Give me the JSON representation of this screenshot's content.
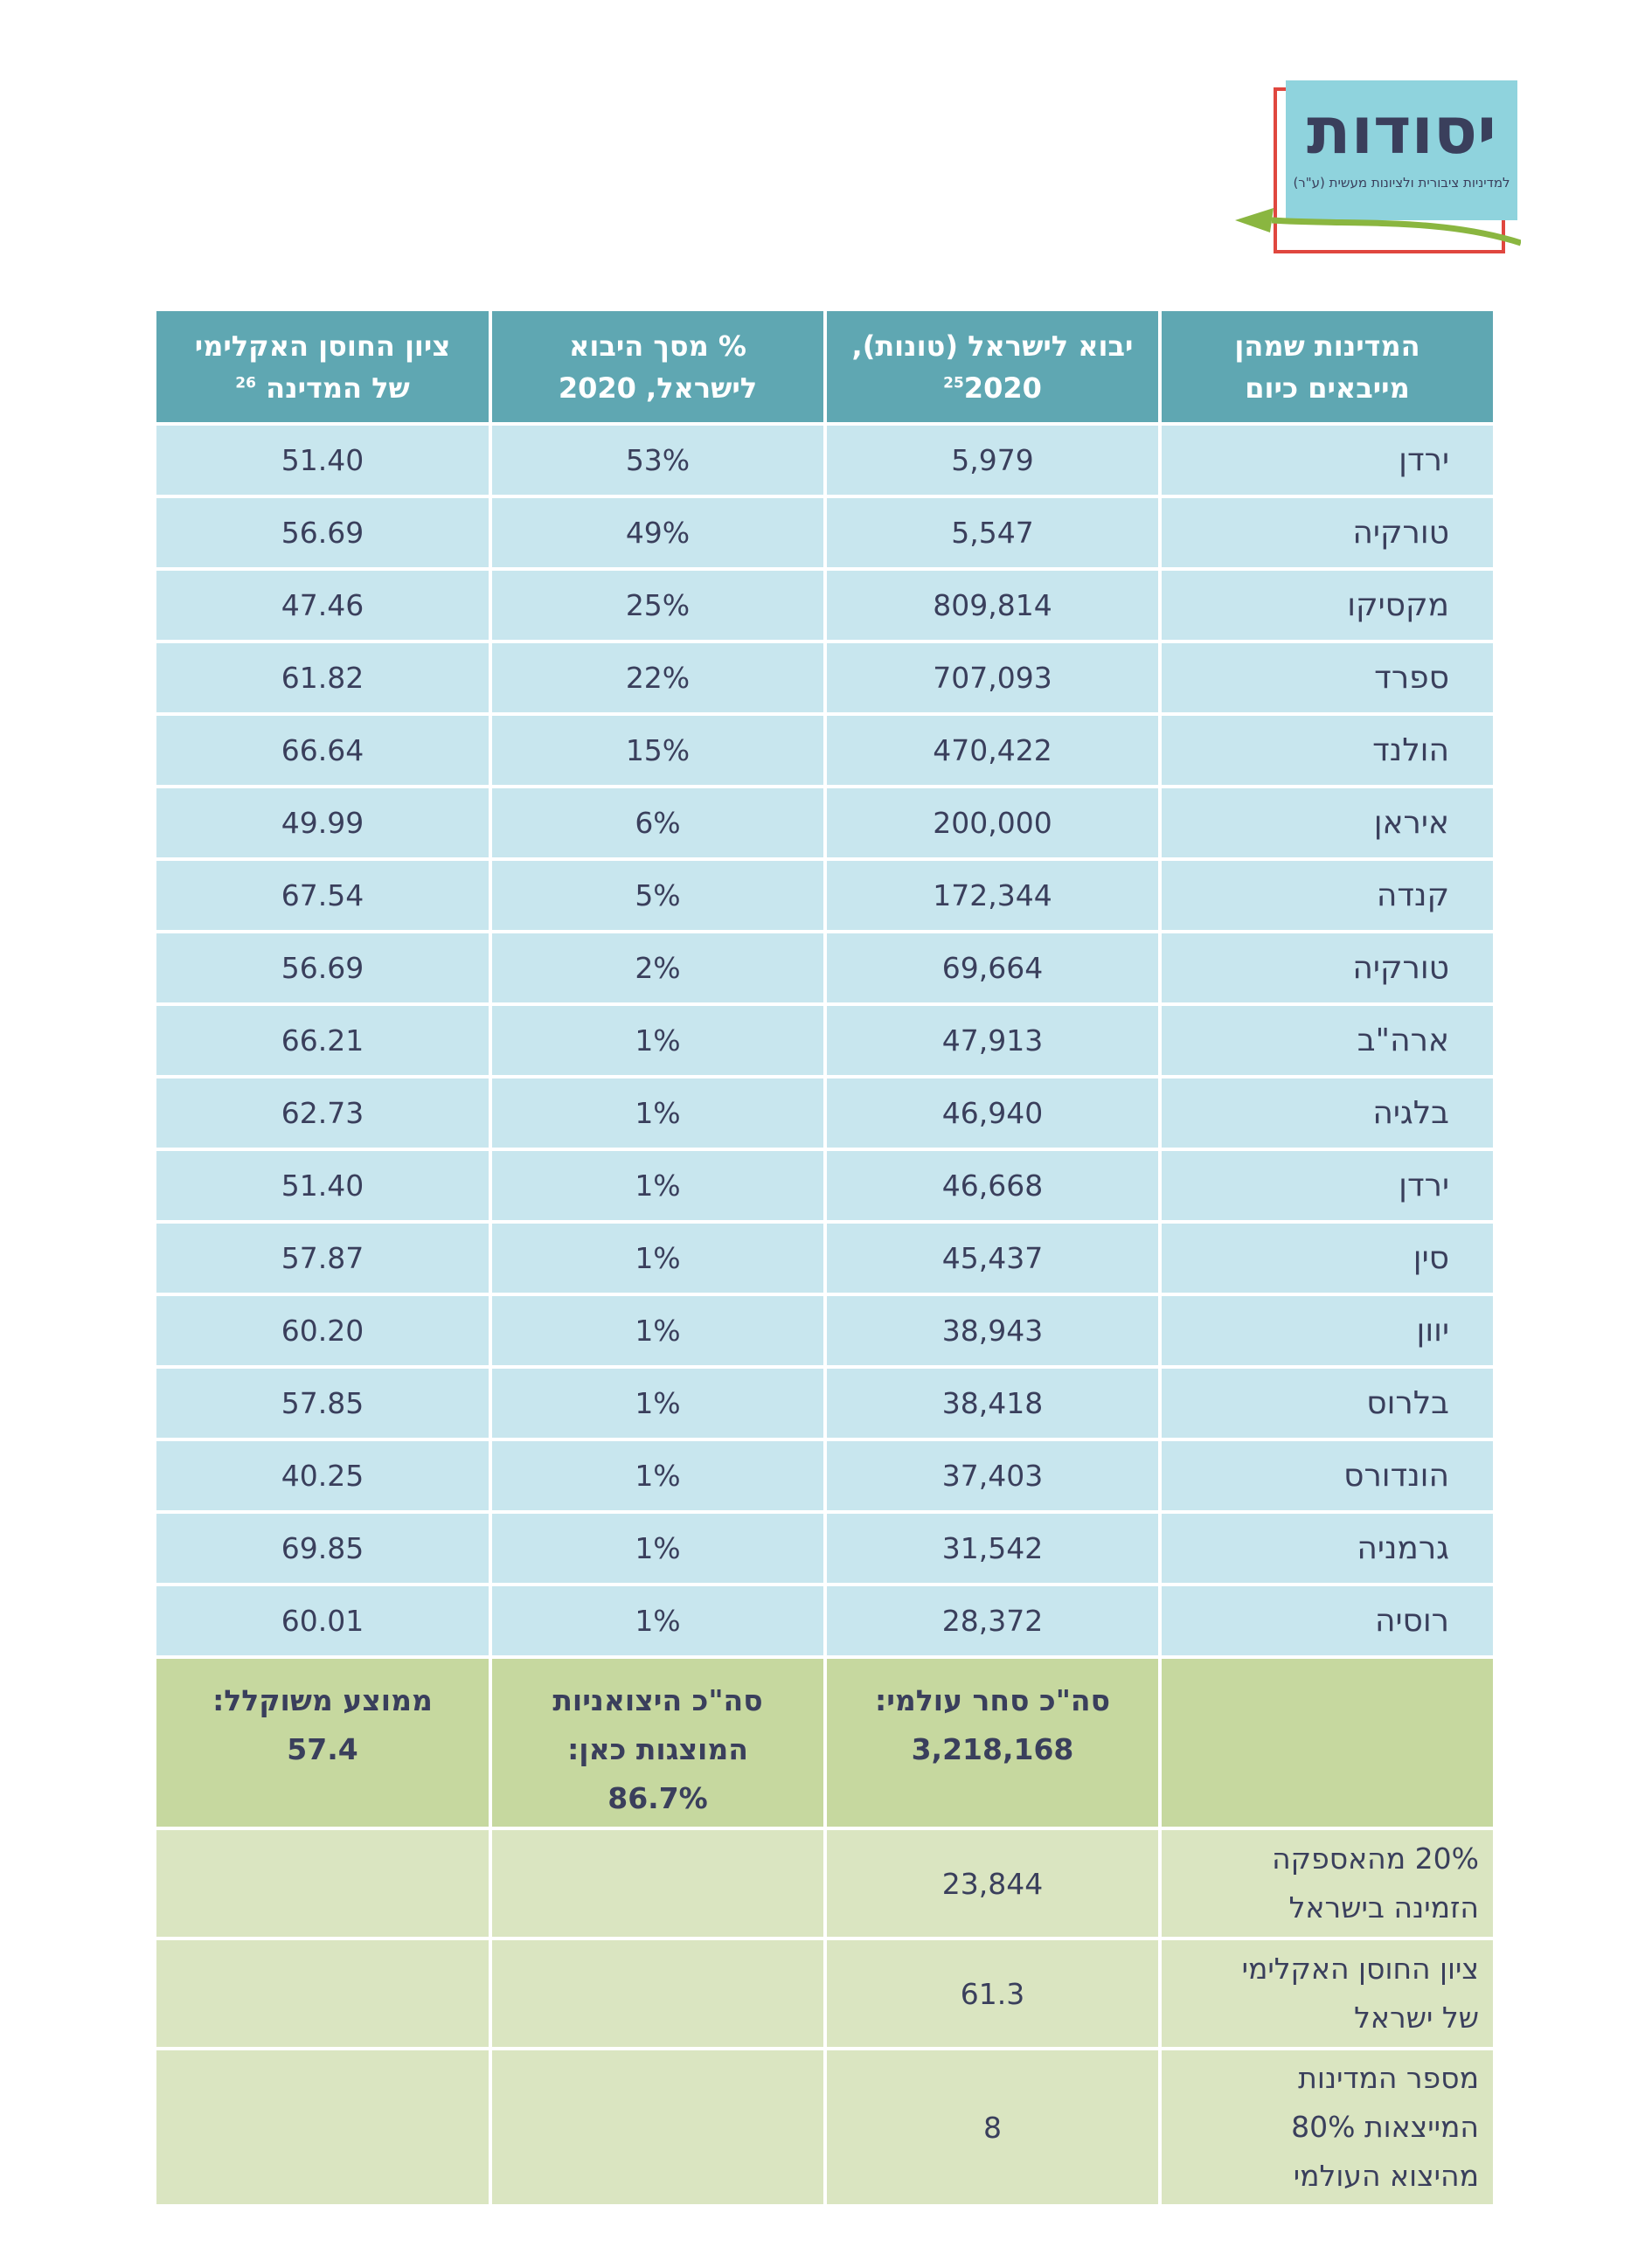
{
  "logo": {
    "title": "יסודות",
    "subtitle": "למדיניות ציבורית ולציונות מעשית (ע\"ר)",
    "colors": {
      "teal": "#8fd3dd",
      "red": "#e0473f",
      "green": "#8ab640",
      "navy": "#3a3f5c"
    }
  },
  "colors": {
    "header_bg": "#5fa7b2",
    "row_bg": "#c8e6ee",
    "total_bg": "#c6d89f",
    "extra_bg": "#dae5c1"
  },
  "table": {
    "headers": {
      "country_line1": "המדינות שמהן",
      "country_line2": "מייבאים כיום",
      "import_line1": "יבוא לישראל (טונות),",
      "import_line2": "2020",
      "import_sup": "25",
      "share_line1": "% מסך היבוא",
      "share_line2": "לישראל, 2020",
      "resilience_line1": "ציון החוסן האקלימי",
      "resilience_line2": "של המדינה",
      "resilience_sup": "26"
    },
    "rows": [
      {
        "country": "ירדן",
        "import": "5,979",
        "share": "53%",
        "index": "51.40"
      },
      {
        "country": "טורקיה",
        "import": "5,547",
        "share": "49%",
        "index": "56.69"
      },
      {
        "country": "מקסיקו",
        "import": "809,814",
        "share": "25%",
        "index": "47.46"
      },
      {
        "country": "ספרד",
        "import": "707,093",
        "share": "22%",
        "index": "61.82"
      },
      {
        "country": "הולנד",
        "import": "470,422",
        "share": "15%",
        "index": "66.64"
      },
      {
        "country": "איראן",
        "import": "200,000",
        "share": "6%",
        "index": "49.99"
      },
      {
        "country": "קנדה",
        "import": "172,344",
        "share": "5%",
        "index": "67.54"
      },
      {
        "country": "טורקיה",
        "import": "69,664",
        "share": "2%",
        "index": "56.69"
      },
      {
        "country": "ארה\"ב",
        "import": "47,913",
        "share": "1%",
        "index": "66.21"
      },
      {
        "country": "בלגיה",
        "import": "46,940",
        "share": "1%",
        "index": "62.73"
      },
      {
        "country": "ירדן",
        "import": "46,668",
        "share": "1%",
        "index": "51.40"
      },
      {
        "country": "סין",
        "import": "45,437",
        "share": "1%",
        "index": "57.87"
      },
      {
        "country": "יוון",
        "import": "38,943",
        "share": "1%",
        "index": "60.20"
      },
      {
        "country": "בלרוס",
        "import": "38,418",
        "share": "1%",
        "index": "57.85"
      },
      {
        "country": "הונדורס",
        "import": "37,403",
        "share": "1%",
        "index": "40.25"
      },
      {
        "country": "גרמניה",
        "import": "31,542",
        "share": "1%",
        "index": "69.85"
      },
      {
        "country": "רוסיה",
        "import": "28,372",
        "share": "1%",
        "index": "60.01"
      }
    ],
    "totals": {
      "world_label": "סה\"כ סחר עולמי:",
      "world_value": "3,218,168",
      "exporters_label_1": "סה\"כ היצואניות",
      "exporters_label_2": "המוצגות כאן:",
      "exporters_value": "86.7%",
      "weighted_label": "ממוצע משוקלל:",
      "weighted_value": "57.4"
    },
    "extra": [
      {
        "label_1": "20% מהאספקה",
        "label_2": "הזמינה בישראל",
        "label_3": "",
        "value": "23,844"
      },
      {
        "label_1": "ציון החוסן האקלימי",
        "label_2": "של ישראל",
        "label_3": "",
        "value": "61.3"
      },
      {
        "label_1": "מספר המדינות",
        "label_2": "המייצאות 80%",
        "label_3": "מהיצוא העולמי",
        "value": "8"
      }
    ]
  }
}
